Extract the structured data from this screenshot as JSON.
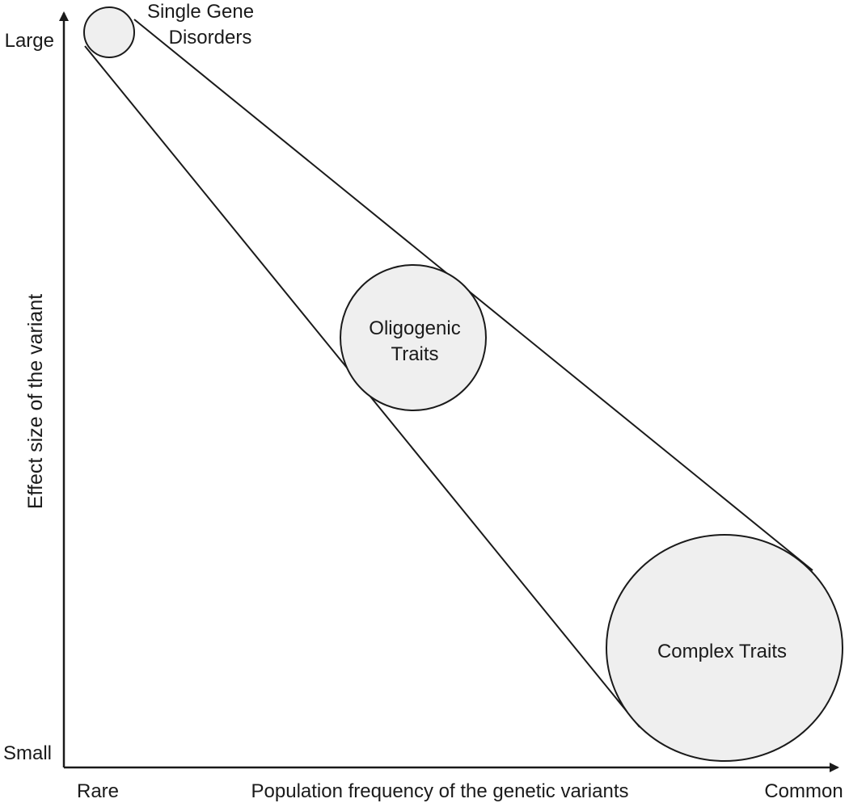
{
  "axes": {
    "y_label": "Effect size of the variant",
    "y_top": "Large",
    "y_bottom": "Small",
    "x_label": "Population frequency of the genetic variants",
    "x_left": "Rare",
    "x_right": "Common"
  },
  "categories": {
    "single_gene": [
      "Single Gene",
      "Disorders"
    ],
    "oligogenic": [
      "Oligogenic",
      "Traits"
    ],
    "complex": [
      "Complex Traits"
    ]
  },
  "colors": {
    "circle_fill": "#efefef",
    "stroke": "#1a1a1a"
  }
}
